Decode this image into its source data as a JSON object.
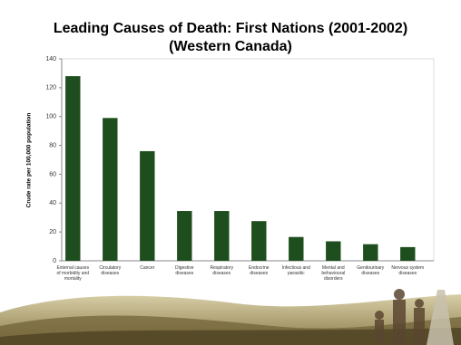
{
  "chart_data": {
    "type": "bar",
    "title": "Leading Causes of Death: First Nations (2001-2002)",
    "subtitle": "(Western Canada)",
    "y_label": "Crude rate per 100,000 population",
    "categories": [
      "External causes of morbidity and mortality",
      "Circulatory diseases",
      "Cancer",
      "Digestive diseases",
      "Respiratory diseases",
      "Endocrine diseases",
      "Infectious and parasitic",
      "Mental and behavioural disorders",
      "Genitourinary diseases",
      "Nervous system diseases"
    ],
    "values": [
      128,
      99,
      76,
      34.5,
      34.5,
      27.5,
      16.5,
      13.5,
      11.5,
      9.5
    ],
    "color": "#1e4d1e",
    "ylim": [
      0,
      140
    ],
    "yticks": [
      0,
      20,
      40,
      60,
      80,
      100,
      120,
      140
    ],
    "grid": false
  }
}
